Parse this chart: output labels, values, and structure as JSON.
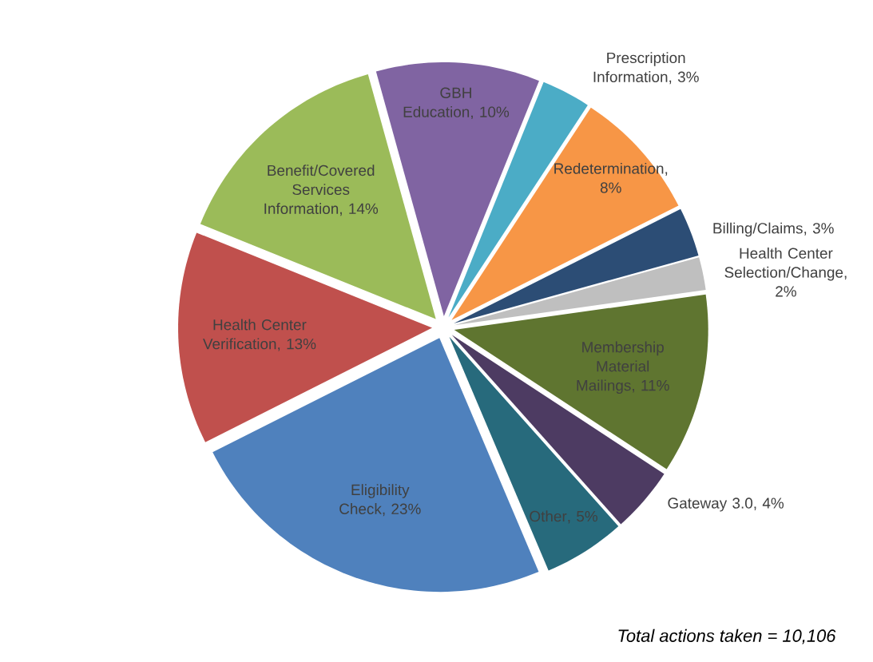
{
  "chart_data": {
    "type": "pie",
    "categories": [
      "Prescription Information",
      "Redetermination",
      "Billing/Claims",
      "Health Center Selection/Change",
      "Membership Material Mailings",
      "Gateway 3.0",
      "Other",
      "Eligibility Check",
      "Health Center Verification",
      "Benefit/Covered Services Information",
      "GBH Education"
    ],
    "values": [
      3,
      8,
      3,
      2,
      11,
      4,
      5,
      23,
      13,
      14,
      10
    ],
    "value_labels": [
      ", 3%",
      ", 8%",
      ", 3%",
      ", 2%",
      ", 11%",
      ", 4%",
      ", 5%",
      ", 23%",
      ", 13%",
      ", 14%",
      ", 10%"
    ],
    "colors": [
      "#4bacc6",
      "#f79646",
      "#2c4d75",
      "#bfbfbf",
      "#5f7530",
      "#4d3b62",
      "#276a7c",
      "#4f81bd",
      "#c0504d",
      "#9bbb59",
      "#8064a2"
    ],
    "annotations": [
      "Total actions taken = 10,106"
    ]
  }
}
